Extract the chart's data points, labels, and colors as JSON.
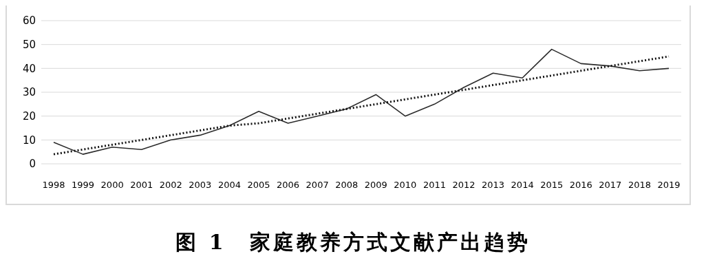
{
  "chart_data": {
    "type": "line",
    "title": "图 1　家庭教养方式文献产出趋势",
    "categories": [
      "1998",
      "1999",
      "2000",
      "2001",
      "2002",
      "2003",
      "2004",
      "2005",
      "2006",
      "2007",
      "2008",
      "2009",
      "2010",
      "2011",
      "2012",
      "2013",
      "2014",
      "2015",
      "2016",
      "2017",
      "2018",
      "2019"
    ],
    "series": [
      {
        "color": "#2b2b2b",
        "line_style": "solid",
        "values": [
          9,
          4,
          7,
          6,
          10,
          12,
          16,
          22,
          17,
          20,
          23,
          29,
          20,
          25,
          32,
          38,
          36,
          48,
          42,
          41,
          39,
          40
        ]
      },
      {
        "color": "#111111",
        "line_style": "dotted",
        "values": [
          4,
          6,
          8,
          10,
          12,
          14,
          16,
          17,
          19,
          21,
          23,
          25,
          27,
          29,
          31,
          33,
          35,
          37,
          39,
          41,
          43,
          45
        ]
      }
    ],
    "ylim": [
      0,
      60
    ],
    "yticks": [
      0,
      10,
      20,
      30,
      40,
      50,
      60
    ],
    "grid": "y",
    "marker": "none"
  }
}
